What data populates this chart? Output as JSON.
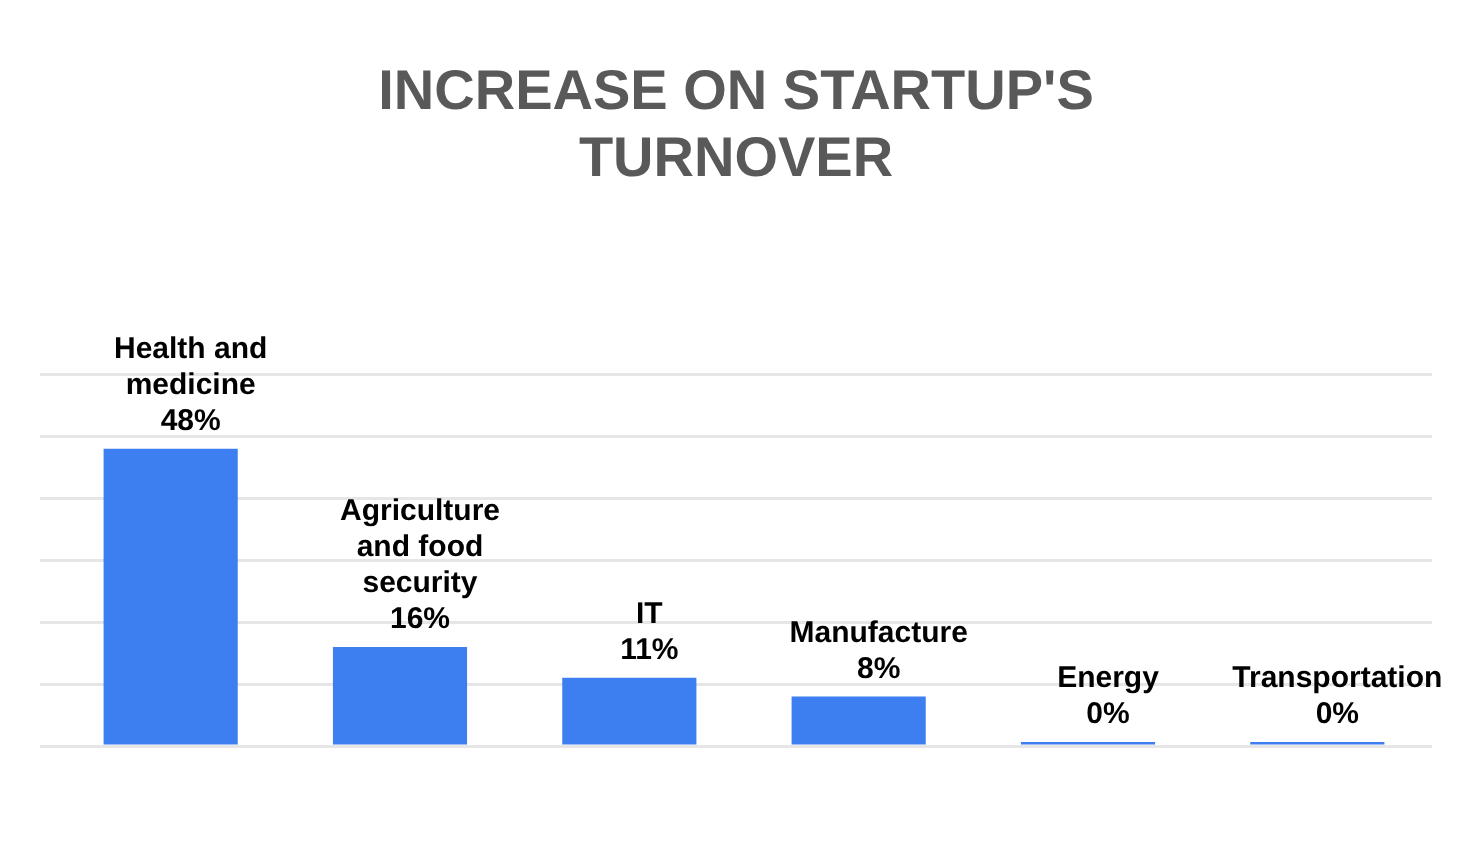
{
  "chart_data": {
    "type": "bar",
    "title": "INCREASE ON STARTUP'S TURNOVER",
    "categories": [
      "Health and medicine",
      "Agriculture and food security",
      "IT",
      "Manufacture",
      "Energy",
      "Transportation"
    ],
    "values": [
      48,
      16,
      11,
      8,
      0,
      0
    ],
    "value_labels": [
      "48%",
      "16%",
      "11%",
      "8%",
      "0%",
      "0%"
    ],
    "color": "#3d7ef0",
    "ylim": [
      0,
      60
    ],
    "yticks": [
      {
        "value": 0,
        "label": null
      },
      {
        "value": 10,
        "label": null
      },
      {
        "value": 20,
        "label": null
      },
      {
        "value": 30,
        "label": null
      },
      {
        "value": 40,
        "label": null
      },
      {
        "value": 50,
        "label": null
      },
      {
        "value": 60,
        "label": null
      }
    ],
    "grid": "y",
    "tick_labels": false,
    "legend": false
  }
}
